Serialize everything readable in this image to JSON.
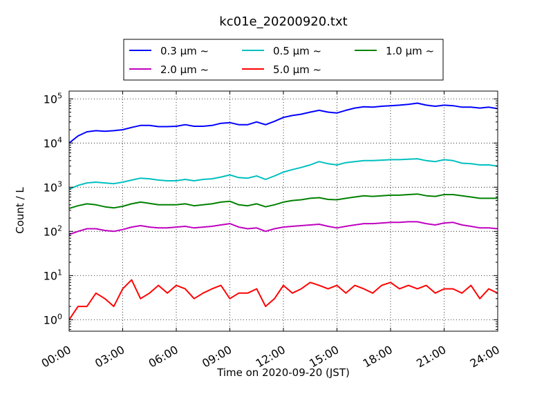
{
  "chart_data": {
    "type": "line",
    "title": "kc01e_20200920.txt",
    "xlabel": "Time on 2020-09-20 (JST)",
    "ylabel": "Count / L",
    "yscale": "log",
    "xlim": [
      "00:00",
      "24:00"
    ],
    "ylim": [
      0.55,
      150000
    ],
    "grid": true,
    "legend_position": "top",
    "x_ticks": [
      "00:00",
      "03:00",
      "06:00",
      "09:00",
      "12:00",
      "15:00",
      "18:00",
      "21:00",
      "24:00"
    ],
    "y_ticks": [
      {
        "value": 1,
        "base": "10",
        "exp": "0"
      },
      {
        "value": 10,
        "base": "10",
        "exp": "1"
      },
      {
        "value": 100,
        "base": "10",
        "exp": "2"
      },
      {
        "value": 1000,
        "base": "10",
        "exp": "3"
      },
      {
        "value": 10000,
        "base": "10",
        "exp": "4"
      },
      {
        "value": 100000,
        "base": "10",
        "exp": "5"
      }
    ],
    "x_hours": [
      0,
      0.5,
      1,
      1.5,
      2,
      2.5,
      3,
      3.5,
      4,
      4.5,
      5,
      5.5,
      6,
      6.5,
      7,
      7.5,
      8,
      8.5,
      9,
      9.5,
      10,
      10.5,
      11,
      11.5,
      12,
      12.5,
      13,
      13.5,
      14,
      14.5,
      15,
      15.5,
      16,
      16.5,
      17,
      17.5,
      18,
      18.5,
      19,
      19.5,
      20,
      20.5,
      21,
      21.5,
      22,
      22.5,
      23,
      23.5,
      24
    ],
    "series": [
      {
        "name": "0.3 µm ~",
        "color": "#0000ff",
        "values": [
          10000,
          14500,
          18000,
          19000,
          18500,
          19000,
          20000,
          22500,
          25000,
          25000,
          23500,
          23500,
          24000,
          26000,
          24000,
          24000,
          25000,
          28000,
          29000,
          26000,
          26000,
          30000,
          26000,
          31000,
          38000,
          42000,
          45000,
          50000,
          55000,
          50000,
          48000,
          55000,
          62000,
          66000,
          65000,
          68000,
          70000,
          72000,
          75000,
          80000,
          72000,
          68000,
          72000,
          70000,
          65000,
          65000,
          62000,
          65000,
          60000
        ]
      },
      {
        "name": "0.5 µm ~",
        "color": "#00bfbf",
        "values": [
          900,
          1100,
          1250,
          1300,
          1250,
          1200,
          1300,
          1450,
          1600,
          1550,
          1450,
          1400,
          1400,
          1500,
          1400,
          1500,
          1550,
          1700,
          1900,
          1650,
          1600,
          1800,
          1500,
          1800,
          2200,
          2500,
          2800,
          3200,
          3800,
          3400,
          3200,
          3600,
          3800,
          4000,
          4000,
          4100,
          4200,
          4200,
          4300,
          4400,
          4000,
          3800,
          4200,
          4000,
          3500,
          3400,
          3200,
          3200,
          3000
        ]
      },
      {
        "name": "1.0 µm ~",
        "color": "#008000",
        "values": [
          330,
          380,
          420,
          400,
          360,
          340,
          370,
          420,
          460,
          430,
          400,
          400,
          400,
          420,
          380,
          400,
          420,
          460,
          480,
          400,
          380,
          420,
          360,
          400,
          460,
          500,
          520,
          560,
          580,
          530,
          520,
          560,
          600,
          640,
          620,
          640,
          660,
          660,
          680,
          700,
          640,
          620,
          680,
          680,
          640,
          600,
          560,
          560,
          560
        ]
      },
      {
        "name": "2.0 µm ~",
        "color": "#bf00bf",
        "values": [
          85,
          100,
          115,
          115,
          105,
          100,
          110,
          125,
          135,
          125,
          120,
          120,
          125,
          130,
          120,
          125,
          130,
          140,
          150,
          125,
          115,
          120,
          100,
          115,
          125,
          130,
          135,
          140,
          145,
          130,
          120,
          130,
          140,
          150,
          150,
          155,
          160,
          160,
          165,
          165,
          150,
          140,
          155,
          160,
          140,
          130,
          120,
          120,
          115
        ]
      },
      {
        "name": "5.0 µm ~",
        "color": "#ff0000",
        "values": [
          1,
          2,
          2,
          4,
          3,
          2,
          5,
          8,
          3,
          4,
          6,
          4,
          6,
          5,
          3,
          4,
          5,
          6,
          3,
          4,
          4,
          5,
          2,
          3,
          6,
          4,
          5,
          7,
          6,
          5,
          6,
          4,
          6,
          5,
          4,
          6,
          7,
          5,
          6,
          5,
          6,
          4,
          5,
          5,
          4,
          6,
          3,
          5,
          4
        ]
      }
    ]
  }
}
